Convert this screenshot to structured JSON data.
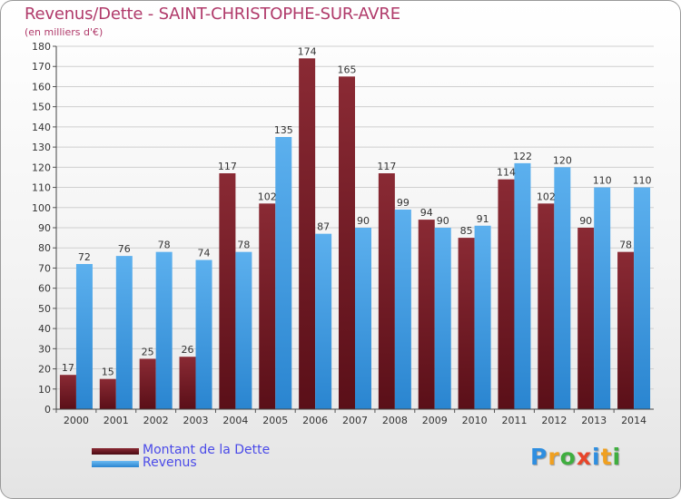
{
  "title": "Revenus/Dette - SAINT-CHRISTOPHE-SUR-AVRE",
  "subtitle": "(en milliers d'€)",
  "logo": [
    "P",
    "r",
    "o",
    "x",
    "i",
    "t",
    "i"
  ],
  "colors": {
    "debt": "#7a1e2a",
    "revenue": "#3e9be0",
    "logo": [
      "#2e8ee0",
      "#f0a020",
      "#3fae3f",
      "#e8452a",
      "#2e8ee0",
      "#f0a020",
      "#3fae3f"
    ]
  },
  "chart_data": {
    "type": "bar",
    "categories": [
      "2000",
      "2001",
      "2002",
      "2003",
      "2004",
      "2005",
      "2006",
      "2007",
      "2008",
      "2009",
      "2010",
      "2011",
      "2012",
      "2013",
      "2014"
    ],
    "series": [
      {
        "name": "Montant de la Dette",
        "values": [
          17,
          15,
          25,
          26,
          117,
          102,
          174,
          165,
          117,
          94,
          85,
          114,
          102,
          90,
          78
        ]
      },
      {
        "name": "Revenus",
        "values": [
          72,
          76,
          78,
          74,
          78,
          135,
          87,
          90,
          99,
          90,
          91,
          122,
          120,
          110,
          110
        ]
      }
    ],
    "ylim": [
      0,
      180
    ],
    "yticks": [
      0,
      10,
      20,
      30,
      40,
      50,
      60,
      70,
      80,
      90,
      100,
      110,
      120,
      130,
      140,
      150,
      160,
      170,
      180
    ],
    "grid": true,
    "legend": "bottom-left"
  }
}
